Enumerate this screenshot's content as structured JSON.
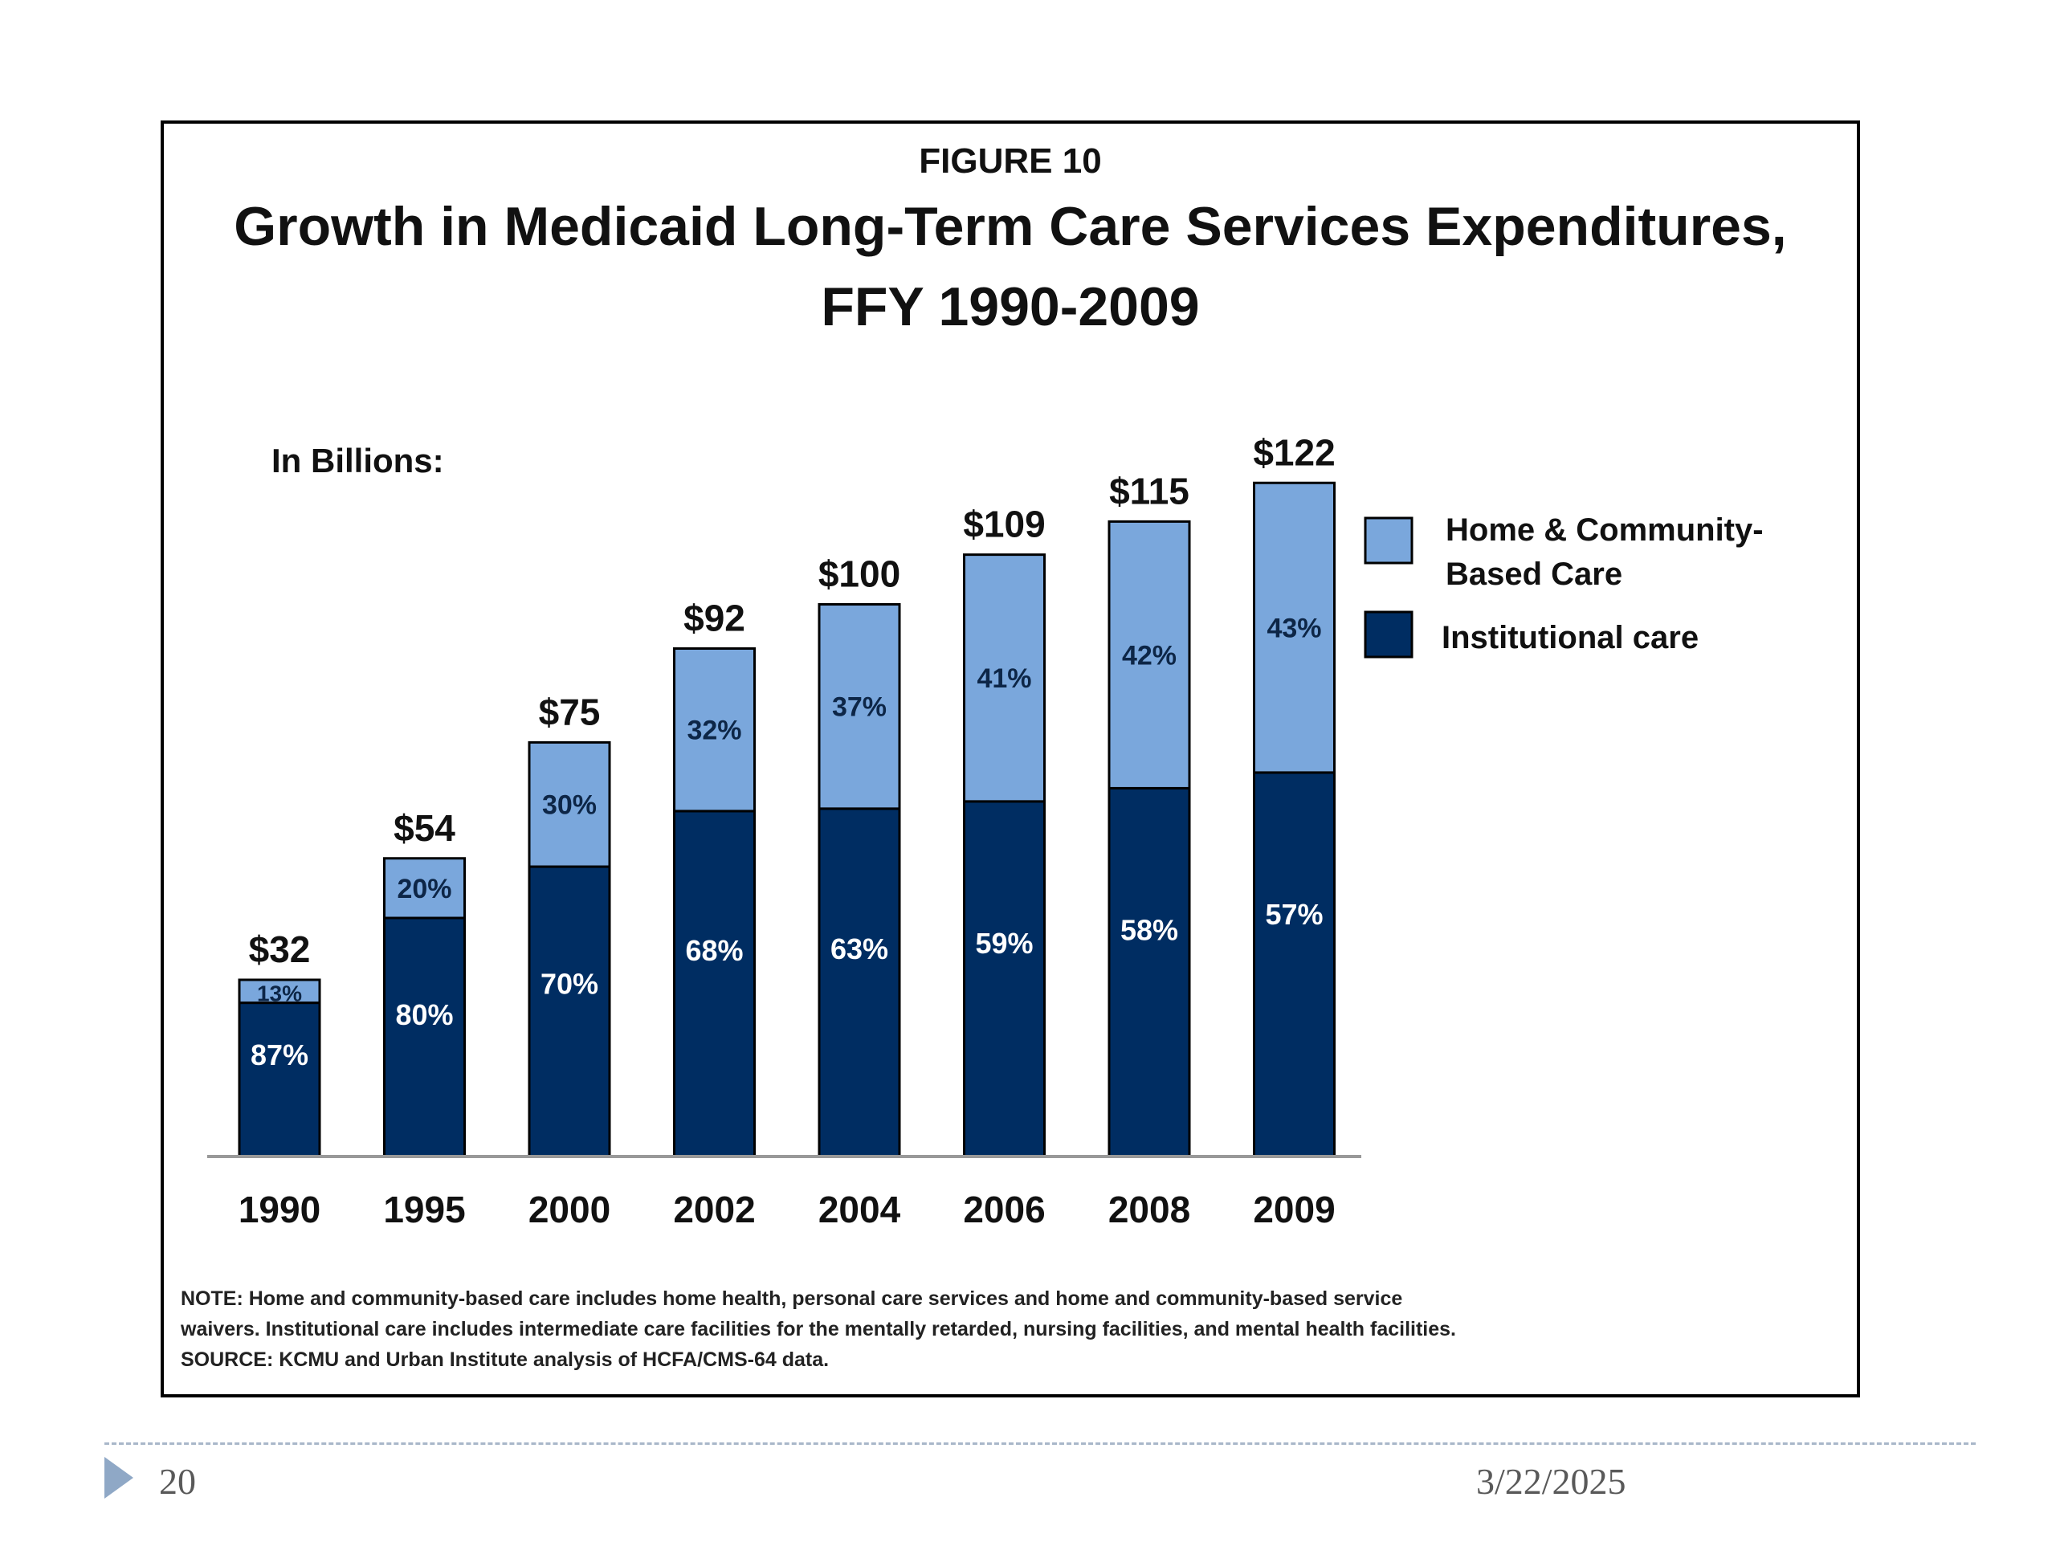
{
  "chart_data": {
    "type": "bar",
    "stacked": true,
    "kicker": "FIGURE 10",
    "title_lines": [
      "Growth in Medicaid Long-Term Care Services Expenditures,",
      "FFY 1990-2009"
    ],
    "unit_label": "In Billions:",
    "categories": [
      "1990",
      "1995",
      "2000",
      "2002",
      "2004",
      "2006",
      "2008",
      "2009"
    ],
    "totals": [
      32,
      54,
      75,
      92,
      100,
      109,
      115,
      122
    ],
    "total_labels": [
      "$32",
      "$54",
      "$75",
      "$92",
      "$100",
      "$109",
      "$115",
      "$122"
    ],
    "series": [
      {
        "name": "Institutional care",
        "color": "#002d62",
        "shares": [
          87,
          80,
          70,
          68,
          63,
          59,
          58,
          57
        ],
        "labels": [
          "87%",
          "80%",
          "70%",
          "68%",
          "63%",
          "59%",
          "58%",
          "57%"
        ]
      },
      {
        "name": "Home & Community-Based Care",
        "name_lines": [
          "Home & Community-",
          "Based Care"
        ],
        "color": "#7aa7dc",
        "shares": [
          13,
          20,
          30,
          32,
          37,
          41,
          42,
          43
        ],
        "labels": [
          "13%",
          "20%",
          "30%",
          "32%",
          "37%",
          "41%",
          "42%",
          "43%"
        ]
      }
    ],
    "ylim": [
      0,
      128
    ],
    "grid": false,
    "legend_position": "right",
    "notes": [
      "NOTE: Home and  community-based care includes home health, personal care services and home and community-based service",
      "waivers. Institutional care includes intermediate care facilities for the mentally retarded, nursing facilities, and mental health facilities.",
      "SOURCE: KCMU and Urban Institute analysis of HCFA/CMS-64 data."
    ]
  },
  "footer": {
    "slide_number": "20",
    "date": "3/22/2025"
  }
}
